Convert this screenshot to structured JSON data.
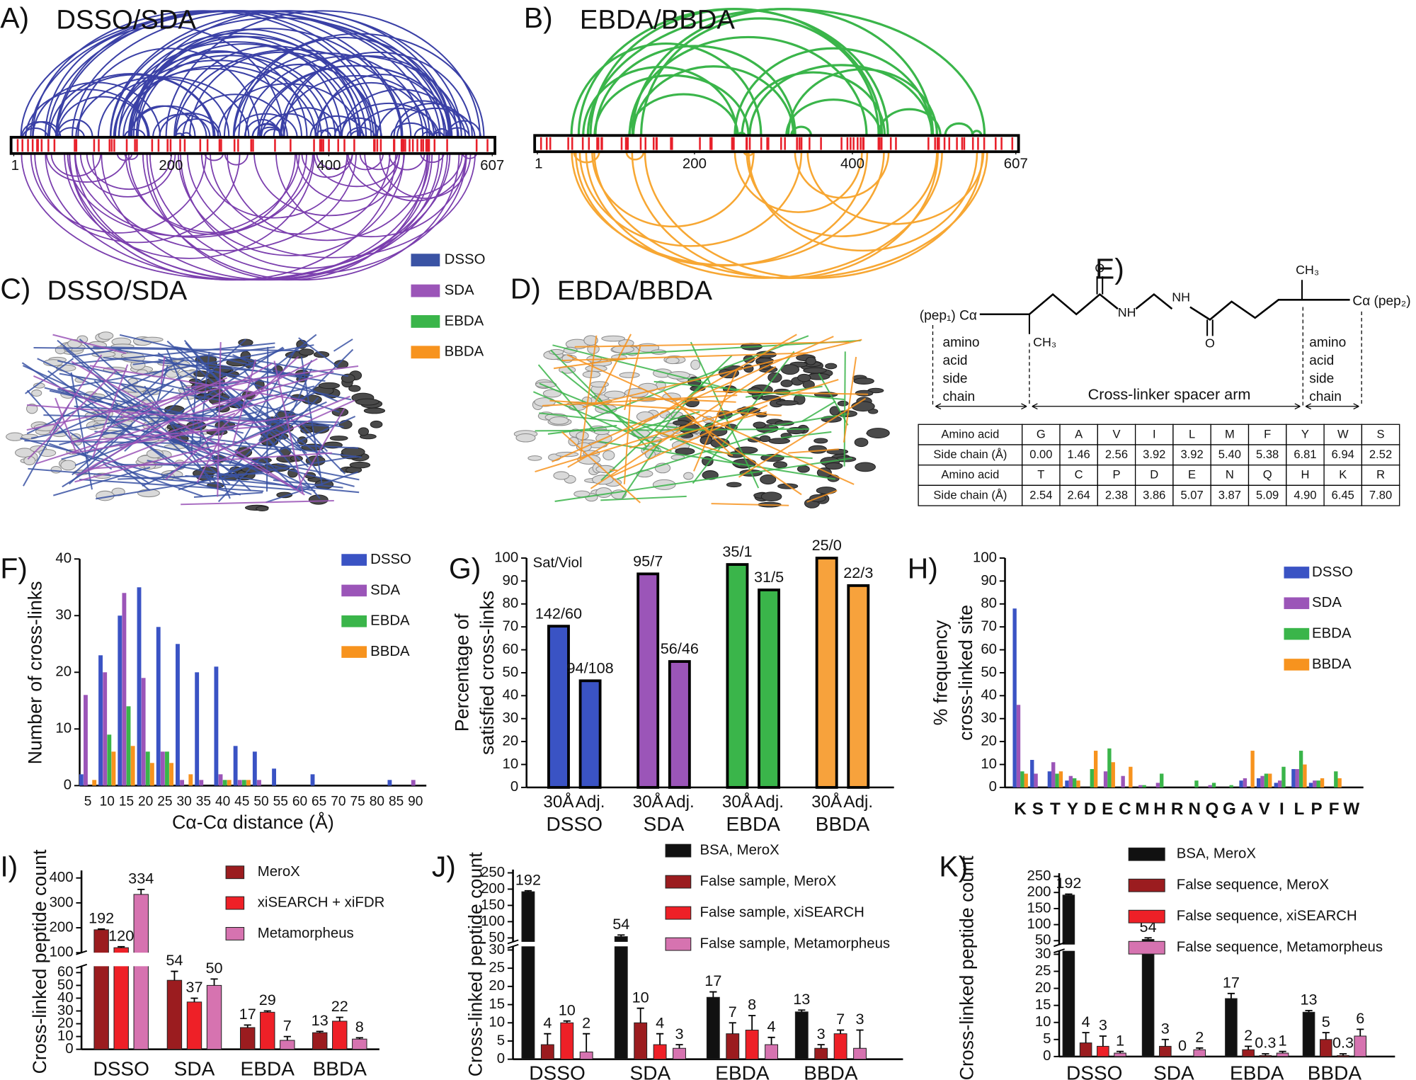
{
  "panels": {
    "A": {
      "label": "A)",
      "title": "DSSO/SDA",
      "xlim": [
        1,
        607
      ],
      "ticks": [
        1,
        200,
        400,
        607
      ]
    },
    "B": {
      "label": "B)",
      "title": "EBDA/BBDA",
      "xlim": [
        1,
        607
      ],
      "ticks": [
        1,
        200,
        400,
        607
      ]
    },
    "C": {
      "label": "C)",
      "title": "DSSO/SDA"
    },
    "D": {
      "label": "D)",
      "title": "EBDA/BBDA"
    },
    "legend": [
      {
        "name": "DSSO",
        "color": "#3a53a4"
      },
      {
        "name": "SDA",
        "color": "#9b55b8"
      },
      {
        "name": "EBDA",
        "color": "#3ab54a"
      },
      {
        "name": "BBDA",
        "color": "#f7931e"
      }
    ],
    "E": {
      "label": "E)",
      "atoms": {
        "o_top": "O",
        "nh_1": "NH",
        "nh_2": "NH",
        "o_bottom": "O",
        "ch3_top": "CH₃",
        "ch3_bottom": "CH₃"
      },
      "left_end": "(pep₁) Cα",
      "right_end": "Cα (pep₂)",
      "side_chain_left": [
        "amino",
        "acid",
        "side",
        "chain"
      ],
      "side_chain_right": [
        "amino",
        "acid",
        "side",
        "chain"
      ],
      "spacer": "Cross-linker spacer arm",
      "table": {
        "rows": [
          [
            "Amino acid",
            "G",
            "A",
            "V",
            "I",
            "L",
            "M",
            "F",
            "Y",
            "W",
            "S"
          ],
          [
            "Side chain (Å)",
            "0.00",
            "1.46",
            "2.56",
            "3.92",
            "3.92",
            "5.40",
            "5.38",
            "6.81",
            "6.94",
            "2.52"
          ],
          [
            "Amino acid",
            "T",
            "C",
            "P",
            "D",
            "E",
            "N",
            "Q",
            "H",
            "K",
            "R"
          ],
          [
            "Side chain (Å)",
            "2.54",
            "2.64",
            "2.38",
            "3.86",
            "5.07",
            "3.87",
            "5.09",
            "4.90",
            "6.45",
            "7.80"
          ]
        ]
      }
    }
  },
  "chart_data": [
    {
      "panel": "F)",
      "type": "bar",
      "xlabel": "Cα-Cα distance (Å)",
      "ylabel": [
        "Number of cross-links"
      ],
      "categories": [
        5,
        10,
        15,
        20,
        25,
        30,
        35,
        40,
        45,
        50,
        55,
        60,
        65,
        70,
        75,
        80,
        85,
        90
      ],
      "series": [
        {
          "name": "DSSO",
          "color": "#3a53c4",
          "values": [
            2,
            23,
            30,
            35,
            28,
            25,
            20,
            21,
            7,
            6,
            3,
            0,
            2,
            0,
            0,
            0,
            1,
            0
          ]
        },
        {
          "name": "SDA",
          "color": "#9b55b8",
          "values": [
            16,
            20,
            34,
            19,
            6,
            1,
            1,
            2,
            1,
            1,
            0,
            0,
            0,
            0,
            0,
            0,
            0,
            1
          ]
        },
        {
          "name": "EBDA",
          "color": "#3ab54a",
          "values": [
            0,
            9,
            14,
            6,
            6,
            0,
            0,
            1,
            1,
            0,
            0,
            0,
            0,
            0,
            0,
            0,
            0,
            0
          ]
        },
        {
          "name": "BBDA",
          "color": "#f7931e",
          "values": [
            1,
            6,
            7,
            4,
            4,
            2,
            0,
            1,
            1,
            0,
            0,
            0,
            0,
            0,
            0,
            0,
            0,
            0
          ]
        }
      ],
      "ylim": [
        0,
        40
      ],
      "yticks": [
        0,
        10,
        20,
        30,
        40
      ],
      "legend": "upper right"
    },
    {
      "panel": "G)",
      "type": "bar",
      "ylabel": [
        "Percentage of",
        "satisfied cross-links"
      ],
      "annotation": "Sat/Viol",
      "categories": [
        "30Å",
        "Adj.",
        "30Å",
        "Adj.",
        "30Å",
        "Adj.",
        "30Å",
        "Adj."
      ],
      "groups": [
        "DSSO",
        "SDA",
        "EBDA",
        "BBDA"
      ],
      "colors": [
        "#3a53c4",
        "#9b55b8",
        "#3ab54a",
        "#f7a23c"
      ],
      "values": [
        70.3,
        46.5,
        93.1,
        54.9,
        97.2,
        86.1,
        100,
        88
      ],
      "value_labels": [
        "142/60",
        "94/108",
        "95/7",
        "56/46",
        "35/1",
        "31/5",
        "25/0",
        "22/3"
      ],
      "ylim": [
        0,
        100
      ],
      "yticks": [
        0,
        10,
        20,
        30,
        40,
        50,
        60,
        70,
        80,
        90,
        100
      ]
    },
    {
      "panel": "H)",
      "type": "bar",
      "ylabel": [
        "% frequency",
        "cross-linked site"
      ],
      "categories": [
        "K",
        "S",
        "T",
        "Y",
        "D",
        "E",
        "C",
        "M",
        "H",
        "R",
        "N",
        "Q",
        "G",
        "A",
        "V",
        "I",
        "L",
        "P",
        "F",
        "W"
      ],
      "series": [
        {
          "name": "DSSO",
          "color": "#3a53c4",
          "values": [
            78,
            12,
            7,
            3,
            0,
            0,
            0,
            0,
            0,
            0,
            0,
            0,
            0,
            3,
            4,
            2,
            8,
            2,
            0,
            0
          ]
        },
        {
          "name": "SDA",
          "color": "#9b55b8",
          "values": [
            36,
            6,
            11,
            5,
            0,
            7,
            5,
            1,
            2,
            0,
            0,
            1,
            0,
            4,
            5,
            3,
            8,
            3,
            0,
            0
          ]
        },
        {
          "name": "EBDA",
          "color": "#3ab54a",
          "values": [
            7,
            0,
            6,
            4,
            8,
            17,
            0,
            1,
            6,
            0,
            3,
            2,
            1,
            0,
            6,
            9,
            16,
            3,
            7,
            0
          ]
        },
        {
          "name": "BBDA",
          "color": "#f7931e",
          "values": [
            6,
            0,
            7,
            3,
            16,
            11,
            9,
            0,
            0,
            0,
            0,
            0,
            0,
            16,
            6,
            0,
            10,
            4,
            4,
            0
          ]
        }
      ],
      "ylim": [
        0,
        100
      ],
      "yticks": [
        0,
        10,
        20,
        30,
        40,
        50,
        60,
        70,
        80,
        90,
        100
      ],
      "legend": "upper right"
    },
    {
      "panel": "I)",
      "type": "bar",
      "ylabel": [
        "Cross-linked peptide count"
      ],
      "categories": [
        "DSSO",
        "SDA",
        "EBDA",
        "BBDA"
      ],
      "series": [
        {
          "name": "MeroX",
          "color": "#9b1c1f",
          "values": [
            192,
            54,
            17,
            13
          ],
          "errors": [
            3,
            7,
            2,
            1
          ]
        },
        {
          "name": "xiSEARCH + xiFDR",
          "color": "#ee2027",
          "values": [
            120,
            37,
            29,
            22
          ],
          "errors": [
            4,
            3,
            1,
            3
          ]
        },
        {
          "name": "Metamorpheus",
          "color": "#d673b0",
          "values": [
            334,
            50,
            7,
            8
          ],
          "errors": [
            20,
            5,
            3,
            1
          ]
        }
      ],
      "ylim": [
        0,
        430
      ],
      "axis_break": [
        65,
        100
      ],
      "yticks": [
        0,
        10,
        20,
        30,
        40,
        50,
        60,
        100,
        200,
        300,
        400
      ]
    },
    {
      "panel": "J)",
      "type": "bar",
      "ylabel": [
        "Cross-linked peptide count"
      ],
      "categories": [
        "DSSO",
        "SDA",
        "EBDA",
        "BBDA"
      ],
      "series": [
        {
          "name": "BSA, MeroX",
          "color": "#111111",
          "values": [
            192,
            54,
            17,
            13
          ],
          "errors": [
            3,
            5,
            1.5,
            0.5
          ]
        },
        {
          "name": "False sample, MeroX",
          "color": "#9b1c1f",
          "values": [
            4,
            10,
            7,
            3
          ],
          "errors": [
            3,
            4,
            3,
            1
          ]
        },
        {
          "name": "False sample, xiSEARCH",
          "color": "#ee2027",
          "values": [
            10,
            4,
            8,
            7
          ],
          "errors": [
            0.5,
            3,
            4,
            1
          ]
        },
        {
          "name": "False sample, Metamorpheus",
          "color": "#d673b0",
          "values": [
            2,
            3,
            4,
            3
          ],
          "errors": [
            5,
            1,
            2,
            5
          ]
        }
      ],
      "ylim": [
        0,
        260
      ],
      "axis_break": [
        31,
        38
      ],
      "yticks": [
        0,
        5,
        10,
        15,
        20,
        25,
        30,
        50,
        100,
        150,
        200,
        250
      ]
    },
    {
      "panel": "K)",
      "type": "bar",
      "ylabel": [
        "Cross-linked peptide count"
      ],
      "categories": [
        "DSSO",
        "SDA",
        "EBDA",
        "BBDA"
      ],
      "series": [
        {
          "name": "BSA, MeroX",
          "color": "#111111",
          "values": [
            192,
            54,
            17,
            13
          ],
          "errors": [
            3,
            5,
            1.5,
            0.5
          ]
        },
        {
          "name": "False sequence, MeroX",
          "color": "#9b1c1f",
          "values": [
            4,
            3,
            2,
            5
          ],
          "errors": [
            3,
            2,
            1,
            2
          ]
        },
        {
          "name": "False sequence, xiSEARCH",
          "color": "#ee2027",
          "values": [
            3,
            0,
            0.3,
            0.3
          ],
          "errors": [
            3,
            0,
            0.5,
            0.5
          ]
        },
        {
          "name": "False sequence, Metamorpheus",
          "color": "#d673b0",
          "values": [
            1,
            2,
            1,
            6
          ],
          "errors": [
            0.5,
            0.5,
            0.5,
            2
          ]
        }
      ],
      "ylim": [
        0,
        260
      ],
      "axis_break": [
        31,
        38
      ],
      "yticks": [
        0,
        5,
        10,
        15,
        20,
        25,
        30,
        50,
        100,
        150,
        200,
        250
      ]
    }
  ]
}
